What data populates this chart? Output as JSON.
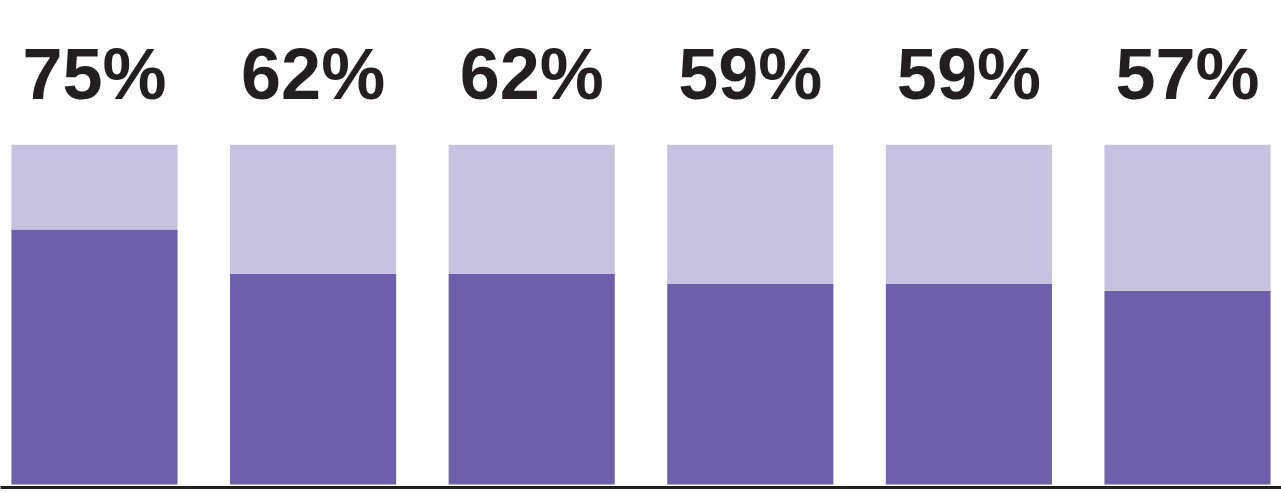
{
  "chart_data": {
    "type": "bar",
    "stacked": true,
    "categories": [
      null,
      null,
      null,
      null,
      null,
      null
    ],
    "ylim": [
      0,
      100
    ],
    "series": [
      {
        "color": "#6d5fa9",
        "values": [
          75,
          62,
          62,
          59,
          59,
          57
        ],
        "value_labels": [
          "75%",
          "62%",
          "62%",
          "59%",
          "59%",
          "57%"
        ]
      },
      {
        "color": "#c6c2e0",
        "values": [
          25,
          38,
          38,
          41,
          41,
          43
        ]
      }
    ],
    "grid": false,
    "tick_labels": false
  }
}
